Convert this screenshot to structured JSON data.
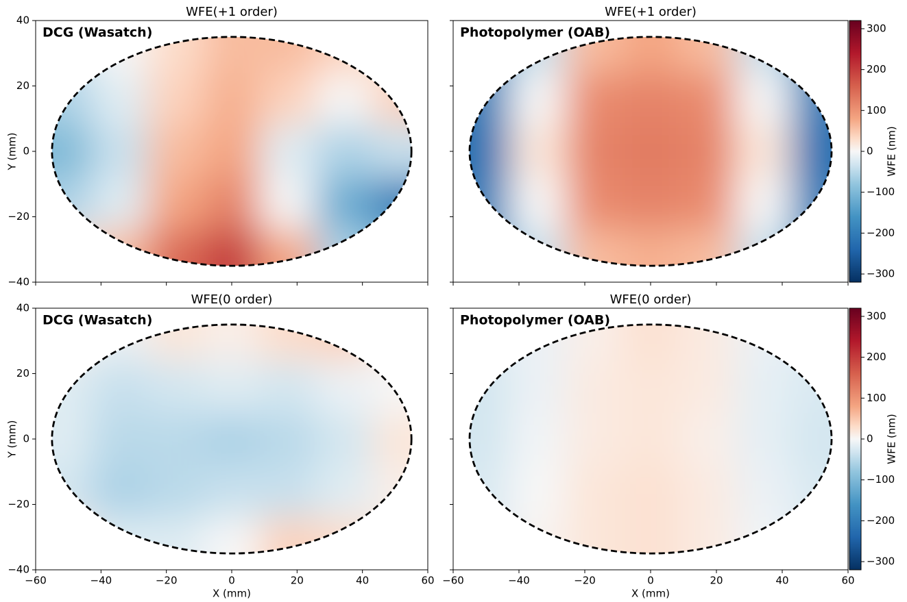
{
  "chart_data": [
    {
      "type": "heatmap",
      "title": "WFE(+1 order)",
      "label": "DCG (Wasatch)",
      "label_color": "#1f77b4",
      "ylabel": "Y (mm)",
      "show_xticklabels": false,
      "show_yticklabels": true,
      "xlim": [
        -60,
        60
      ],
      "ylim": [
        -40,
        40
      ],
      "xticks": [
        {
          "value": -60,
          "label": "−60"
        },
        {
          "value": -40,
          "label": "−40"
        },
        {
          "value": -20,
          "label": "−20"
        },
        0,
        20,
        40,
        60
      ],
      "yticks": [
        {
          "value": -40,
          "label": "−40"
        },
        {
          "value": -20,
          "label": "−20"
        },
        0,
        20,
        40
      ],
      "clim": [
        -320,
        320
      ],
      "cmap": "RdBu_r",
      "ellipse": {
        "cx": 0,
        "cy": 0,
        "rx": 55,
        "ry": 35
      },
      "z": [
        [
          -30,
          0,
          30,
          60,
          60,
          40,
          20
        ],
        [
          -60,
          -20,
          40,
          70,
          40,
          0,
          40
        ],
        [
          -100,
          -40,
          60,
          80,
          -20,
          -60,
          -40
        ],
        [
          -60,
          -20,
          80,
          120,
          0,
          -120,
          -200
        ],
        [
          20,
          60,
          150,
          200,
          80,
          -60,
          -100
        ]
      ]
    },
    {
      "type": "heatmap",
      "title": "WFE(+1 order)",
      "label": "Photopolymer (OAB)",
      "label_color": "#ff7f0e",
      "show_xticklabels": false,
      "show_yticklabels": false,
      "xlim": [
        -60,
        60
      ],
      "ylim": [
        -40,
        40
      ],
      "xticks": [
        {
          "value": -60,
          "label": "−60"
        },
        {
          "value": -40,
          "label": "−40"
        },
        {
          "value": -20,
          "label": "−20"
        },
        0,
        20,
        40,
        60
      ],
      "yticks": [
        {
          "value": -40,
          "label": "−40"
        },
        {
          "value": -20,
          "label": "−20"
        },
        0,
        20,
        40
      ],
      "clim": [
        -320,
        320
      ],
      "cmap": "RdBu_r",
      "ellipse": {
        "cx": 0,
        "cy": 0,
        "rx": 55,
        "ry": 35
      },
      "z": [
        [
          -150,
          -40,
          60,
          80,
          60,
          -40,
          -150
        ],
        [
          -200,
          0,
          110,
          120,
          110,
          0,
          -200
        ],
        [
          -220,
          20,
          120,
          130,
          120,
          20,
          -220
        ],
        [
          -200,
          0,
          110,
          120,
          110,
          0,
          -200
        ],
        [
          -150,
          -40,
          60,
          70,
          60,
          -40,
          -150
        ]
      ],
      "colorbar": {
        "label": "WFE (nm)",
        "ticks": [
          {
            "value": -300,
            "label": "−300"
          },
          {
            "value": -200,
            "label": "−200"
          },
          {
            "value": -100,
            "label": "−100"
          },
          0,
          100,
          200,
          300
        ]
      }
    },
    {
      "type": "heatmap",
      "title": "WFE(0 order)",
      "label": "DCG (Wasatch)",
      "label_color": "#1f77b4",
      "xlabel": "X (mm)",
      "ylabel": "Y (mm)",
      "show_xticklabels": true,
      "show_yticklabels": true,
      "xlim": [
        -60,
        60
      ],
      "ylim": [
        -40,
        40
      ],
      "xticks": [
        {
          "value": -60,
          "label": "−60"
        },
        {
          "value": -40,
          "label": "−40"
        },
        {
          "value": -20,
          "label": "−20"
        },
        0,
        20,
        40,
        60
      ],
      "yticks": [
        {
          "value": -40,
          "label": "−40"
        },
        {
          "value": -20,
          "label": "−20"
        },
        0,
        20,
        40
      ],
      "clim": [
        -320,
        320
      ],
      "cmap": "RdBu_r",
      "ellipse": {
        "cx": 0,
        "cy": 0,
        "rx": 55,
        "ry": 35
      },
      "z": [
        [
          10,
          -10,
          20,
          10,
          30,
          40,
          10
        ],
        [
          -20,
          -40,
          -30,
          -20,
          -30,
          -10,
          0
        ],
        [
          -20,
          -50,
          -50,
          -60,
          -50,
          -30,
          20
        ],
        [
          -30,
          -60,
          -50,
          -40,
          -40,
          -20,
          10
        ],
        [
          20,
          -20,
          -20,
          0,
          40,
          30,
          10
        ]
      ]
    },
    {
      "type": "heatmap",
      "title": "WFE(0 order)",
      "label": "Photopolymer (OAB)",
      "label_color": "#ff7f0e",
      "xlabel": "X (mm)",
      "show_xticklabels": true,
      "show_yticklabels": false,
      "xlim": [
        -60,
        60
      ],
      "ylim": [
        -40,
        40
      ],
      "xticks": [
        {
          "value": -60,
          "label": "−60"
        },
        {
          "value": -40,
          "label": "−40"
        },
        {
          "value": -20,
          "label": "−20"
        },
        0,
        20,
        40,
        60
      ],
      "yticks": [
        {
          "value": -40,
          "label": "−40"
        },
        {
          "value": -20,
          "label": "−20"
        },
        0,
        20,
        40
      ],
      "clim": [
        -320,
        320
      ],
      "cmap": "RdBu_r",
      "ellipse": {
        "cx": 0,
        "cy": 0,
        "rx": 55,
        "ry": 35
      },
      "z": [
        [
          -20,
          -10,
          10,
          25,
          15,
          -10,
          -20
        ],
        [
          -30,
          -10,
          15,
          20,
          15,
          -15,
          -25
        ],
        [
          -30,
          -5,
          15,
          20,
          10,
          -15,
          -30
        ],
        [
          -25,
          0,
          20,
          25,
          15,
          -10,
          -25
        ],
        [
          -20,
          5,
          20,
          25,
          15,
          -5,
          -20
        ]
      ],
      "colorbar": {
        "label": "WFE (nm)",
        "ticks": [
          {
            "value": -300,
            "label": "−300"
          },
          {
            "value": -200,
            "label": "−200"
          },
          {
            "value": -100,
            "label": "−100"
          },
          0,
          100,
          200,
          300
        ]
      }
    }
  ]
}
